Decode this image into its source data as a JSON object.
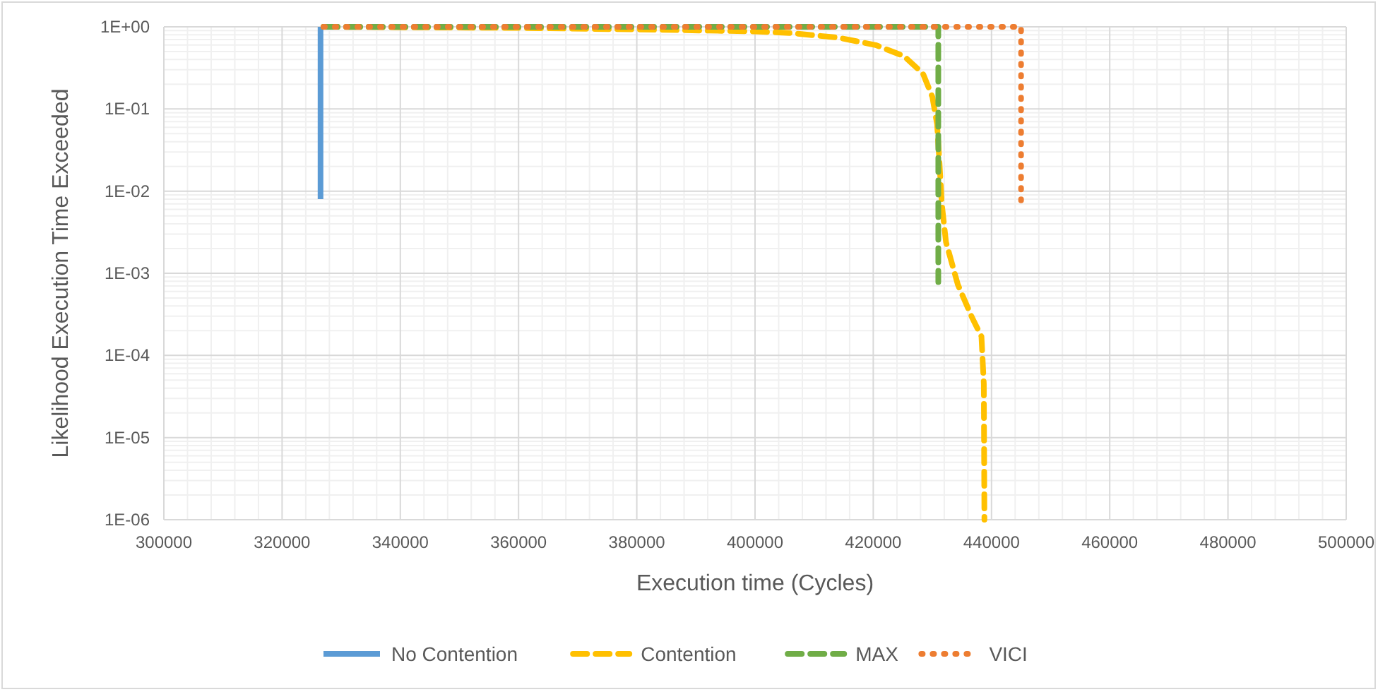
{
  "chart_data": {
    "type": "line",
    "xlabel": "Execution time (Cycles)",
    "ylabel": "Likelihood  Execution Time Exceeded",
    "log": "y",
    "grid": true,
    "legend": "bottom",
    "xlim": [
      300000,
      500000
    ],
    "xticks": [
      300000,
      320000,
      340000,
      360000,
      380000,
      400000,
      420000,
      440000,
      460000,
      480000,
      500000
    ],
    "ylim": [
      1e-06,
      1
    ],
    "yticks": [
      {
        "value": 1e-06,
        "label": "1E-06"
      },
      {
        "value": 1e-05,
        "label": "1E-05"
      },
      {
        "value": 0.0001,
        "label": "1E-04"
      },
      {
        "value": 0.001,
        "label": "1E-03"
      },
      {
        "value": 0.01,
        "label": "1E-02"
      },
      {
        "value": 0.1,
        "label": "1E-01"
      },
      {
        "value": 1,
        "label": "1E+00"
      }
    ],
    "series": [
      {
        "name": "No Contention",
        "color": "#5b9bd5",
        "line_style": "solid",
        "x": [
          326500,
          326500
        ],
        "values": [
          1,
          0.008
        ]
      },
      {
        "name": "Contention",
        "color": "#ffc000",
        "line_style": "dashed",
        "x": [
          327000,
          360000,
          380000,
          400000,
          406000,
          414000,
          420400,
          425200,
          428400,
          430000,
          430800,
          431200,
          431600,
          432300,
          434300,
          436700,
          438300,
          438700,
          438800
        ],
        "values": [
          1,
          0.97,
          0.93,
          0.88,
          0.84,
          0.74,
          0.6,
          0.44,
          0.27,
          0.14,
          0.065,
          0.022,
          0.0069,
          0.0024,
          0.00073,
          0.00029,
          0.00017,
          4.5e-05,
          1e-06
        ]
      },
      {
        "name": "MAX",
        "color": "#70ad47",
        "line_style": "dashed",
        "x": [
          327000,
          431000,
          431000
        ],
        "values": [
          1,
          1,
          0.00078
        ]
      },
      {
        "name": "VICI",
        "color": "#ed7d31",
        "line_style": "dotted",
        "x": [
          327000,
          445000,
          445000
        ],
        "values": [
          1,
          1,
          0.0077
        ]
      }
    ]
  }
}
